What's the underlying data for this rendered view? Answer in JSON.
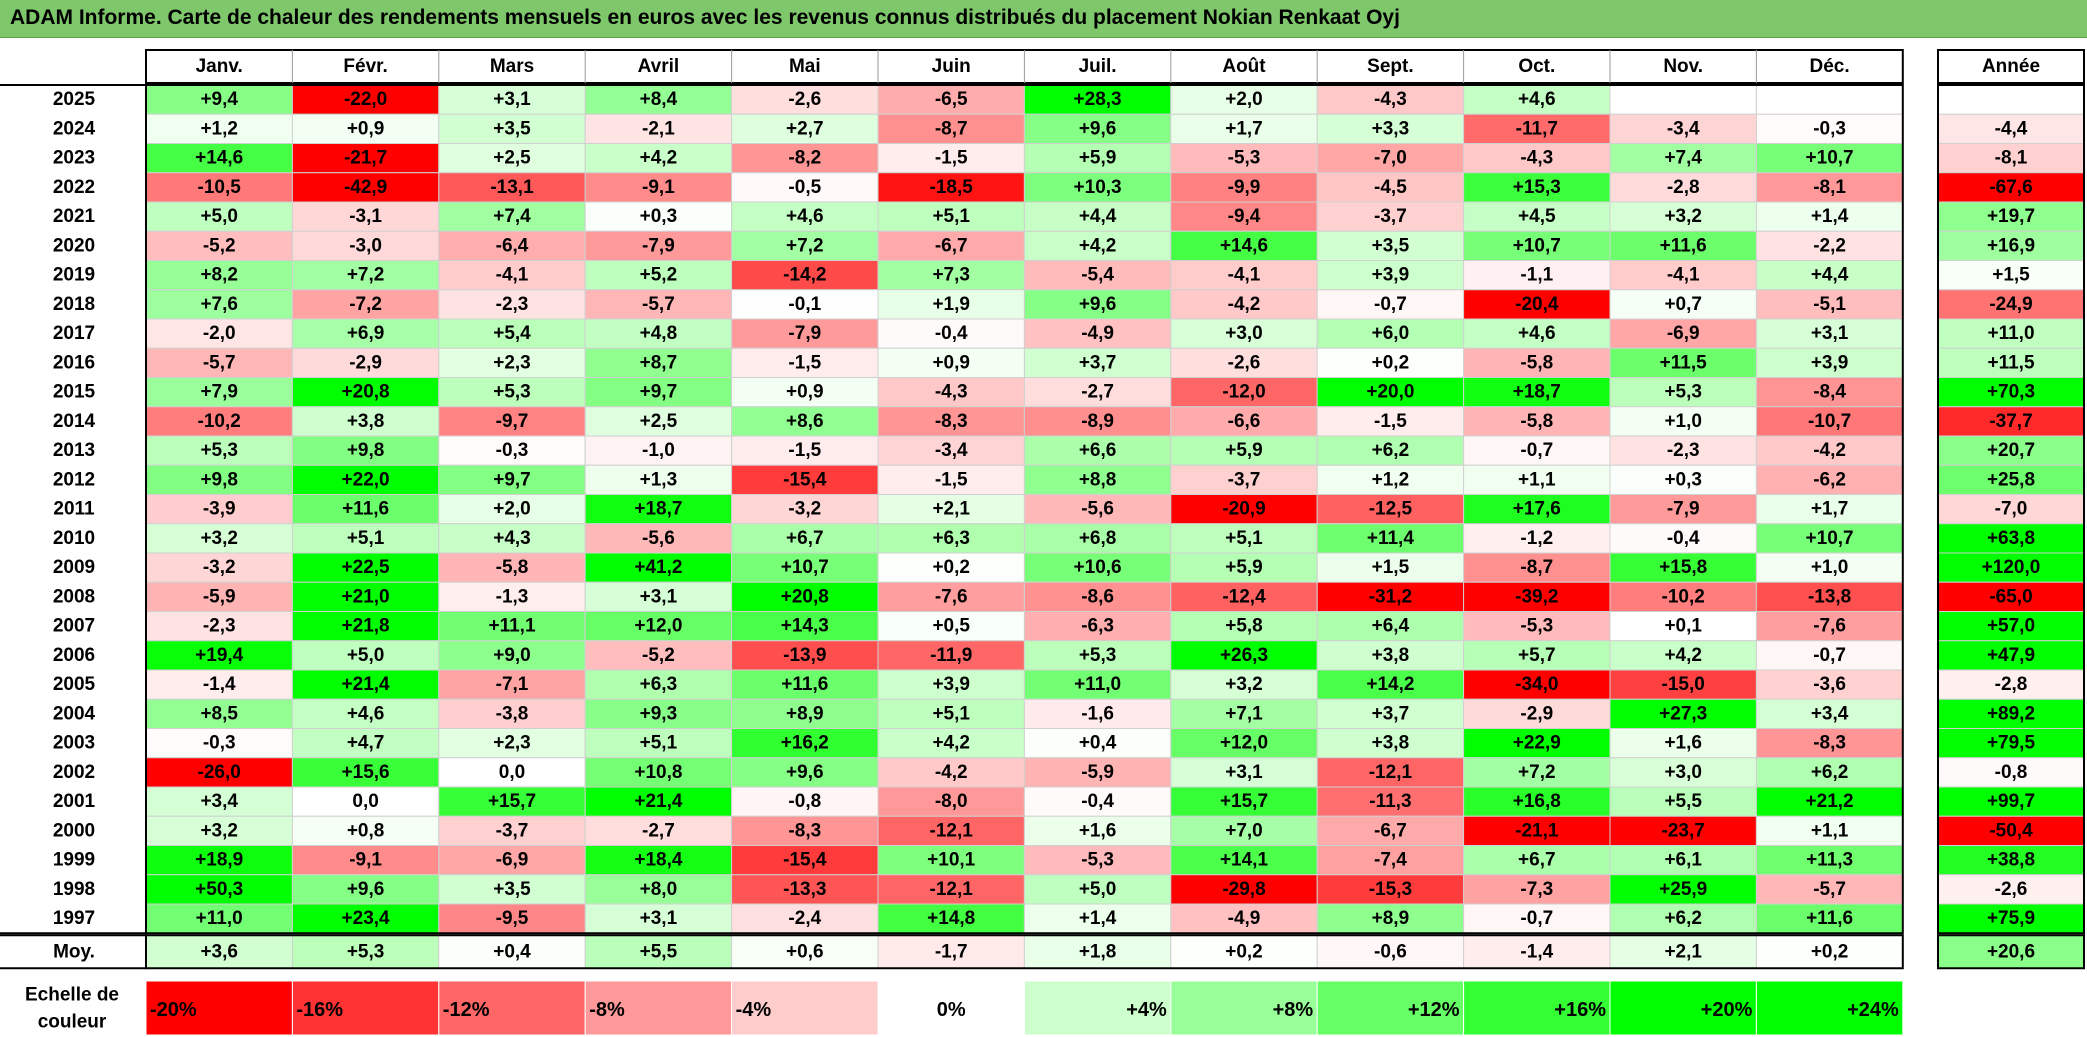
{
  "title": "ADAM Informe. Carte de chaleur des rendements mensuels en euros avec les revenus connus distribués du placement Nokian Renkaat Oyj",
  "chart_data": {
    "type": "heatmap",
    "columns": [
      "Janv.",
      "Févr.",
      "Mars",
      "Avril",
      "Mai",
      "Juin",
      "Juil.",
      "Août",
      "Sept.",
      "Oct.",
      "Nov.",
      "Déc."
    ],
    "year_column": "Année",
    "rows": [
      {
        "year": "2025",
        "values": [
          "+9,4",
          "-22,0",
          "+3,1",
          "+8,4",
          "-2,6",
          "-6,5",
          "+28,3",
          "+2,0",
          "-4,3",
          "+4,6",
          "",
          ""
        ],
        "annual": ""
      },
      {
        "year": "2024",
        "values": [
          "+1,2",
          "+0,9",
          "+3,5",
          "-2,1",
          "+2,7",
          "-8,7",
          "+9,6",
          "+1,7",
          "+3,3",
          "-11,7",
          "-3,4",
          "-0,3"
        ],
        "annual": "-4,4"
      },
      {
        "year": "2023",
        "values": [
          "+14,6",
          "-21,7",
          "+2,5",
          "+4,2",
          "-8,2",
          "-1,5",
          "+5,9",
          "-5,3",
          "-7,0",
          "-4,3",
          "+7,4",
          "+10,7"
        ],
        "annual": "-8,1"
      },
      {
        "year": "2022",
        "values": [
          "-10,5",
          "-42,9",
          "-13,1",
          "-9,1",
          "-0,5",
          "-18,5",
          "+10,3",
          "-9,9",
          "-4,5",
          "+15,3",
          "-2,8",
          "-8,1"
        ],
        "annual": "-67,6"
      },
      {
        "year": "2021",
        "values": [
          "+5,0",
          "-3,1",
          "+7,4",
          "+0,3",
          "+4,6",
          "+5,1",
          "+4,4",
          "-9,4",
          "-3,7",
          "+4,5",
          "+3,2",
          "+1,4"
        ],
        "annual": "+19,7"
      },
      {
        "year": "2020",
        "values": [
          "-5,2",
          "-3,0",
          "-6,4",
          "-7,9",
          "+7,2",
          "-6,7",
          "+4,2",
          "+14,6",
          "+3,5",
          "+10,7",
          "+11,6",
          "-2,2"
        ],
        "annual": "+16,9"
      },
      {
        "year": "2019",
        "values": [
          "+8,2",
          "+7,2",
          "-4,1",
          "+5,2",
          "-14,2",
          "+7,3",
          "-5,4",
          "-4,1",
          "+3,9",
          "-1,1",
          "-4,1",
          "+4,4"
        ],
        "annual": "+1,5"
      },
      {
        "year": "2018",
        "values": [
          "+7,6",
          "-7,2",
          "-2,3",
          "-5,7",
          "-0,1",
          "+1,9",
          "+9,6",
          "-4,2",
          "-0,7",
          "-20,4",
          "+0,7",
          "-5,1"
        ],
        "annual": "-24,9"
      },
      {
        "year": "2017",
        "values": [
          "-2,0",
          "+6,9",
          "+5,4",
          "+4,8",
          "-7,9",
          "-0,4",
          "-4,9",
          "+3,0",
          "+6,0",
          "+4,6",
          "-6,9",
          "+3,1"
        ],
        "annual": "+11,0"
      },
      {
        "year": "2016",
        "values": [
          "-5,7",
          "-2,9",
          "+2,3",
          "+8,7",
          "-1,5",
          "+0,9",
          "+3,7",
          "-2,6",
          "+0,2",
          "-5,8",
          "+11,5",
          "+3,9"
        ],
        "annual": "+11,5"
      },
      {
        "year": "2015",
        "values": [
          "+7,9",
          "+20,8",
          "+5,3",
          "+9,7",
          "+0,9",
          "-4,3",
          "-2,7",
          "-12,0",
          "+20,0",
          "+18,7",
          "+5,3",
          "-8,4"
        ],
        "annual": "+70,3"
      },
      {
        "year": "2014",
        "values": [
          "-10,2",
          "+3,8",
          "-9,7",
          "+2,5",
          "+8,6",
          "-8,3",
          "-8,9",
          "-6,6",
          "-1,5",
          "-5,8",
          "+1,0",
          "-10,7"
        ],
        "annual": "-37,7"
      },
      {
        "year": "2013",
        "values": [
          "+5,3",
          "+9,8",
          "-0,3",
          "-1,0",
          "-1,5",
          "-3,4",
          "+6,6",
          "+5,9",
          "+6,2",
          "-0,7",
          "-2,3",
          "-4,2"
        ],
        "annual": "+20,7"
      },
      {
        "year": "2012",
        "values": [
          "+9,8",
          "+22,0",
          "+9,7",
          "+1,3",
          "-15,4",
          "-1,5",
          "+8,8",
          "-3,7",
          "+1,2",
          "+1,1",
          "+0,3",
          "-6,2"
        ],
        "annual": "+25,8"
      },
      {
        "year": "2011",
        "values": [
          "-3,9",
          "+11,6",
          "+2,0",
          "+18,7",
          "-3,2",
          "+2,1",
          "-5,6",
          "-20,9",
          "-12,5",
          "+17,6",
          "-7,9",
          "+1,7"
        ],
        "annual": "-7,0"
      },
      {
        "year": "2010",
        "values": [
          "+3,2",
          "+5,1",
          "+4,3",
          "-5,6",
          "+6,7",
          "+6,3",
          "+6,8",
          "+5,1",
          "+11,4",
          "-1,2",
          "-0,4",
          "+10,7"
        ],
        "annual": "+63,8"
      },
      {
        "year": "2009",
        "values": [
          "-3,2",
          "+22,5",
          "-5,8",
          "+41,2",
          "+10,7",
          "+0,2",
          "+10,6",
          "+5,9",
          "+1,5",
          "-8,7",
          "+15,8",
          "+1,0"
        ],
        "annual": "+120,0"
      },
      {
        "year": "2008",
        "values": [
          "-5,9",
          "+21,0",
          "-1,3",
          "+3,1",
          "+20,8",
          "-7,6",
          "-8,6",
          "-12,4",
          "-31,2",
          "-39,2",
          "-10,2",
          "-13,8"
        ],
        "annual": "-65,0"
      },
      {
        "year": "2007",
        "values": [
          "-2,3",
          "+21,8",
          "+11,1",
          "+12,0",
          "+14,3",
          "+0,5",
          "-6,3",
          "+5,8",
          "+6,4",
          "-5,3",
          "+0,1",
          "-7,6"
        ],
        "annual": "+57,0"
      },
      {
        "year": "2006",
        "values": [
          "+19,4",
          "+5,0",
          "+9,0",
          "-5,2",
          "-13,9",
          "-11,9",
          "+5,3",
          "+26,3",
          "+3,8",
          "+5,7",
          "+4,2",
          "-0,7"
        ],
        "annual": "+47,9"
      },
      {
        "year": "2005",
        "values": [
          "-1,4",
          "+21,4",
          "-7,1",
          "+6,3",
          "+11,6",
          "+3,9",
          "+11,0",
          "+3,2",
          "+14,2",
          "-34,0",
          "-15,0",
          "-3,6"
        ],
        "annual": "-2,8"
      },
      {
        "year": "2004",
        "values": [
          "+8,5",
          "+4,6",
          "-3,8",
          "+9,3",
          "+8,9",
          "+5,1",
          "-1,6",
          "+7,1",
          "+3,7",
          "-2,9",
          "+27,3",
          "+3,4"
        ],
        "annual": "+89,2"
      },
      {
        "year": "2003",
        "values": [
          "-0,3",
          "+4,7",
          "+2,3",
          "+5,1",
          "+16,2",
          "+4,2",
          "+0,4",
          "+12,0",
          "+3,8",
          "+22,9",
          "+1,6",
          "-8,3"
        ],
        "annual": "+79,5"
      },
      {
        "year": "2002",
        "values": [
          "-26,0",
          "+15,6",
          "0,0",
          "+10,8",
          "+9,6",
          "-4,2",
          "-5,9",
          "+3,1",
          "-12,1",
          "+7,2",
          "+3,0",
          "+6,2"
        ],
        "annual": "-0,8"
      },
      {
        "year": "2001",
        "values": [
          "+3,4",
          "0,0",
          "+15,7",
          "+21,4",
          "-0,8",
          "-8,0",
          "-0,4",
          "+15,7",
          "-11,3",
          "+16,8",
          "+5,5",
          "+21,2"
        ],
        "annual": "+99,7"
      },
      {
        "year": "2000",
        "values": [
          "+3,2",
          "+0,8",
          "-3,7",
          "-2,7",
          "-8,3",
          "-12,1",
          "+1,6",
          "+7,0",
          "-6,7",
          "-21,1",
          "-23,7",
          "+1,1"
        ],
        "annual": "-50,4"
      },
      {
        "year": "1999",
        "values": [
          "+18,9",
          "-9,1",
          "-6,9",
          "+18,4",
          "-15,4",
          "+10,1",
          "-5,3",
          "+14,1",
          "-7,4",
          "+6,7",
          "+6,1",
          "+11,3"
        ],
        "annual": "+38,8"
      },
      {
        "year": "1998",
        "values": [
          "+50,3",
          "+9,6",
          "+3,5",
          "+8,0",
          "-13,3",
          "-12,1",
          "+5,0",
          "-29,8",
          "-15,3",
          "-7,3",
          "+25,9",
          "-5,7"
        ],
        "annual": "-2,6"
      },
      {
        "year": "1997",
        "values": [
          "+11,0",
          "+23,4",
          "-9,5",
          "+3,1",
          "-2,4",
          "+14,8",
          "+1,4",
          "-4,9",
          "+8,9",
          "-0,7",
          "+6,2",
          "+11,6"
        ],
        "annual": "+75,9"
      }
    ],
    "average": {
      "label": "Moy.",
      "values": [
        "+3,6",
        "+5,3",
        "+0,4",
        "+5,5",
        "+0,6",
        "-1,7",
        "+1,8",
        "+0,2",
        "-0,6",
        "-1,4",
        "+2,1",
        "+0,2"
      ],
      "annual": "+20,6"
    },
    "scale": {
      "label_lines": [
        "Echelle de",
        "couleur"
      ],
      "steps": [
        {
          "label": "-20%",
          "value": -20
        },
        {
          "label": "-16%",
          "value": -16
        },
        {
          "label": "-12%",
          "value": -12
        },
        {
          "label": "-8%",
          "value": -8
        },
        {
          "label": "-4%",
          "value": -4
        },
        {
          "label": "0%",
          "value": 0
        },
        {
          "label": "+4%",
          "value": 4
        },
        {
          "label": "+8%",
          "value": 8
        },
        {
          "label": "+12%",
          "value": 12
        },
        {
          "label": "+16%",
          "value": 16
        },
        {
          "label": "+20%",
          "value": 20
        },
        {
          "label": "+24%",
          "value": 24
        }
      ]
    },
    "colors": {
      "negative_max": "#ff0000",
      "neutral": "#ffffff",
      "positive_max": "#00ff00",
      "title_bar": "#7ec86b"
    }
  }
}
